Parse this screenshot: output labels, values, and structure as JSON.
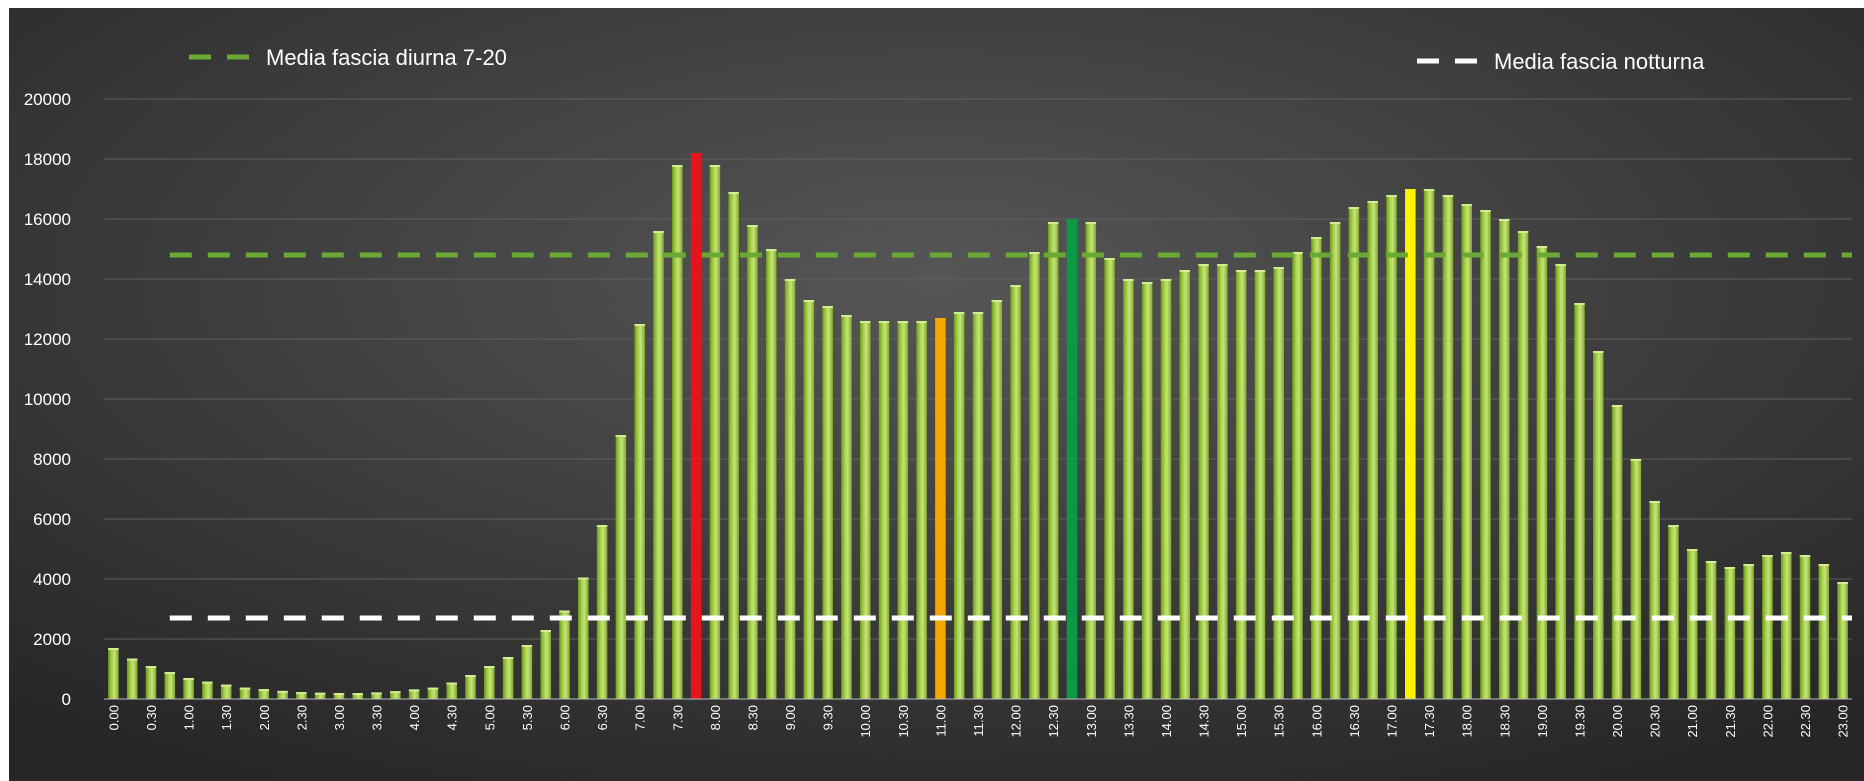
{
  "chart_data": {
    "type": "bar",
    "title": "",
    "xlabel": "",
    "ylabel": "",
    "ylim": [
      0,
      20000
    ],
    "yticks": [
      0,
      2000,
      4000,
      6000,
      8000,
      10000,
      12000,
      14000,
      16000,
      18000,
      20000
    ],
    "grid": true,
    "categories": [
      "0.00",
      "0.15",
      "0.30",
      "0.45",
      "1.00",
      "1.15",
      "1.30",
      "1.45",
      "2.00",
      "2.15",
      "2.30",
      "2.45",
      "3.00",
      "3.15",
      "3.30",
      "3.45",
      "4.00",
      "4.15",
      "4.30",
      "4.45",
      "5.00",
      "5.15",
      "5.30",
      "5.45",
      "6.00",
      "6.15",
      "6.30",
      "6.45",
      "7.00",
      "7.15",
      "7.30",
      "7.45",
      "8.00",
      "8.15",
      "8.30",
      "8.45",
      "9.00",
      "9.15",
      "9.30",
      "9.45",
      "10.00",
      "10.15",
      "10.30",
      "10.45",
      "11.00",
      "11.15",
      "11.30",
      "11.45",
      "12.00",
      "12.15",
      "12.30",
      "12.45",
      "13.00",
      "13.15",
      "13.30",
      "13.45",
      "14.00",
      "14.15",
      "14.30",
      "14.45",
      "15.00",
      "15.15",
      "15.30",
      "15.45",
      "16.00",
      "16.15",
      "16.30",
      "16.45",
      "17.00",
      "17.15",
      "17.30",
      "17.45",
      "18.00",
      "18.15",
      "18.30",
      "18.45",
      "19.00",
      "19.15",
      "19.30",
      "19.45",
      "20.00",
      "20.15",
      "20.30",
      "20.45",
      "21.00",
      "21.15",
      "21.30",
      "21.45",
      "22.00",
      "22.15",
      "22.30",
      "22.45",
      "23.00"
    ],
    "values": [
      1700,
      1350,
      1100,
      900,
      700,
      580,
      480,
      380,
      330,
      270,
      230,
      210,
      200,
      200,
      220,
      260,
      320,
      380,
      550,
      800,
      1100,
      1400,
      1800,
      2300,
      2950,
      4050,
      5800,
      8800,
      12500,
      15600,
      17800,
      18200,
      17800,
      16900,
      15800,
      15000,
      14000,
      13300,
      13100,
      12800,
      12600,
      12600,
      12600,
      12600,
      12700,
      12900,
      12900,
      13300,
      13800,
      14900,
      15900,
      16000,
      15900,
      14700,
      14000,
      13900,
      14000,
      14300,
      14500,
      14500,
      14300,
      14300,
      14400,
      14900,
      15400,
      15900,
      16400,
      16600,
      16800,
      17000,
      17000,
      16800,
      16500,
      16300,
      16000,
      15600,
      15100,
      14500,
      13200,
      11600,
      9800,
      8000,
      6600,
      5800,
      5000,
      4600,
      4400,
      4500,
      4800,
      4900,
      4800,
      4500,
      3900
    ],
    "highlights": [
      {
        "category": "7.45",
        "color": "#e8141d"
      },
      {
        "category": "11.00",
        "color": "#f5a700"
      },
      {
        "category": "12.45",
        "color": "#0a9a45"
      },
      {
        "category": "17.15",
        "color": "#fff200"
      }
    ],
    "reference_lines": [
      {
        "name": "Media fascia diurna 7-20",
        "value": 14800,
        "color": "#6aaa34"
      },
      {
        "name": "Media fascia notturna",
        "value": 2700,
        "color": "#ffffff"
      }
    ],
    "legend": {
      "placement": "top",
      "entries": [
        "Media fascia diurna 7-20",
        "Media fascia notturna"
      ]
    },
    "colors": {
      "bar": "#9cc63c",
      "background_center": "#565656",
      "background_edge": "#262626",
      "gridline": "#5f5f5f"
    }
  }
}
